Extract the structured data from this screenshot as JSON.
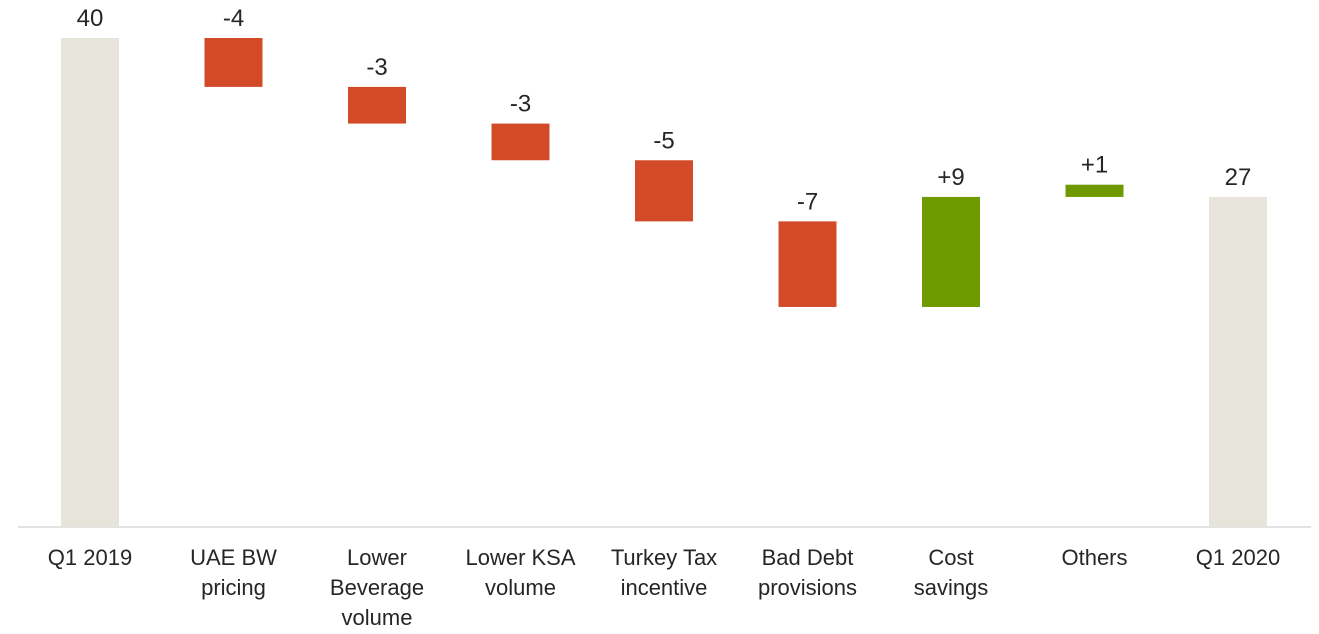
{
  "chart_data": {
    "type": "waterfall",
    "categories": [
      [
        "Q1 2019"
      ],
      [
        "UAE BW",
        "pricing"
      ],
      [
        "Lower",
        "Beverage",
        "volume"
      ],
      [
        "Lower KSA",
        "volume"
      ],
      [
        "Turkey Tax",
        "incentive"
      ],
      [
        "Bad Debt",
        "provisions"
      ],
      [
        "Cost",
        "savings"
      ],
      [
        "Others"
      ],
      [
        "Q1 2020"
      ]
    ],
    "values": [
      40,
      -4,
      -3,
      -3,
      -5,
      -7,
      9,
      1,
      27
    ],
    "kinds": [
      "total",
      "delta",
      "delta",
      "delta",
      "delta",
      "delta",
      "delta",
      "delta",
      "total"
    ],
    "labels": [
      "40",
      "-4",
      "-3",
      "-3",
      "-5",
      "-7",
      "+9",
      "+1",
      "27"
    ],
    "ylim": [
      0,
      41
    ],
    "colors": {
      "total": "#e7e4dc",
      "decrease": "#d34a28",
      "increase": "#6e9a00",
      "axis": "#d9d9d9",
      "text": "#262626"
    }
  }
}
